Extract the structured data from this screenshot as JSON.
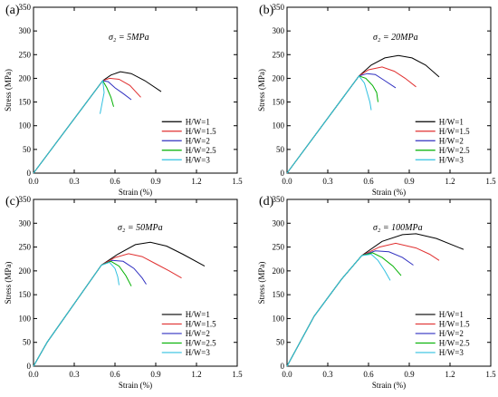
{
  "figure": {
    "panels": [
      {
        "panel_label": "(a)",
        "sigma_label": "σ₂ = 5MPa"
      },
      {
        "panel_label": "(b)",
        "sigma_label": "σ₂ = 20MPa"
      },
      {
        "panel_label": "(c)",
        "sigma_label": "σ₂ = 50MPa"
      },
      {
        "panel_label": "(d)",
        "sigma_label": "σ₂ = 100MPa"
      }
    ]
  },
  "chart_data": [
    {
      "type": "line",
      "title": "(a) σ₂ = 5MPa",
      "xlabel": "Strain (%)",
      "ylabel": "Stress (MPa)",
      "xlim": [
        0,
        1.5
      ],
      "ylim": [
        0,
        350
      ],
      "xticks": [
        "0.0",
        "0.3",
        "0.6",
        "0.9",
        "1.2",
        "1.5"
      ],
      "yticks": [
        "0",
        "50",
        "100",
        "150",
        "200",
        "250",
        "300",
        "350"
      ],
      "legend_position": "right",
      "series": [
        {
          "name": "H/W=1",
          "color": "#000000",
          "points": [
            [
              0,
              0
            ],
            [
              0.51,
              195
            ],
            [
              0.57,
              207
            ],
            [
              0.64,
              214
            ],
            [
              0.72,
              210
            ],
            [
              0.82,
              195
            ],
            [
              0.94,
              172
            ]
          ]
        },
        {
          "name": "H/W=1.5",
          "color": "#e03030",
          "points": [
            [
              0,
              0
            ],
            [
              0.51,
              195
            ],
            [
              0.56,
              200
            ],
            [
              0.63,
              198
            ],
            [
              0.71,
              185
            ],
            [
              0.79,
              160
            ]
          ]
        },
        {
          "name": "H/W=2",
          "color": "#3030c0",
          "points": [
            [
              0,
              0
            ],
            [
              0.51,
              195
            ],
            [
              0.55,
              193
            ],
            [
              0.6,
              180
            ],
            [
              0.66,
              168
            ],
            [
              0.72,
              155
            ]
          ]
        },
        {
          "name": "H/W=2.5",
          "color": "#00b000",
          "points": [
            [
              0,
              0
            ],
            [
              0.51,
              195
            ],
            [
              0.54,
              180
            ],
            [
              0.57,
              160
            ],
            [
              0.59,
              140
            ]
          ]
        },
        {
          "name": "H/W=3",
          "color": "#30c0e0",
          "points": [
            [
              0,
              0
            ],
            [
              0.51,
              195
            ],
            [
              0.52,
              170
            ],
            [
              0.5,
              140
            ],
            [
              0.49,
              125
            ]
          ]
        }
      ]
    },
    {
      "type": "line",
      "title": "(b) σ₂ = 20MPa",
      "xlabel": "Strain (%)",
      "ylabel": "Stress (MPa)",
      "xlim": [
        0,
        1.5
      ],
      "ylim": [
        0,
        350
      ],
      "xticks": [
        "0.0",
        "0.3",
        "0.6",
        "0.9",
        "1.2",
        "1.5"
      ],
      "yticks": [
        "0",
        "50",
        "100",
        "150",
        "200",
        "250",
        "300",
        "350"
      ],
      "legend_position": "right",
      "series": [
        {
          "name": "H/W=1",
          "color": "#000000",
          "points": [
            [
              0,
              0
            ],
            [
              0.53,
              205
            ],
            [
              0.62,
              228
            ],
            [
              0.72,
              243
            ],
            [
              0.82,
              248
            ],
            [
              0.92,
              243
            ],
            [
              1.02,
              228
            ],
            [
              1.12,
              203
            ]
          ]
        },
        {
          "name": "H/W=1.5",
          "color": "#e03030",
          "points": [
            [
              0,
              0
            ],
            [
              0.53,
              205
            ],
            [
              0.6,
              218
            ],
            [
              0.7,
              224
            ],
            [
              0.79,
              215
            ],
            [
              0.87,
              200
            ],
            [
              0.95,
              182
            ]
          ]
        },
        {
          "name": "H/W=2",
          "color": "#3030c0",
          "points": [
            [
              0,
              0
            ],
            [
              0.53,
              205
            ],
            [
              0.59,
              210
            ],
            [
              0.65,
              208
            ],
            [
              0.72,
              195
            ],
            [
              0.8,
              180
            ]
          ]
        },
        {
          "name": "H/W=2.5",
          "color": "#00b000",
          "points": [
            [
              0,
              0
            ],
            [
              0.53,
              205
            ],
            [
              0.58,
              200
            ],
            [
              0.63,
              185
            ],
            [
              0.66,
              170
            ],
            [
              0.67,
              150
            ]
          ]
        },
        {
          "name": "H/W=3",
          "color": "#30c0e0",
          "points": [
            [
              0,
              0
            ],
            [
              0.53,
              205
            ],
            [
              0.57,
              190
            ],
            [
              0.59,
              170
            ],
            [
              0.61,
              150
            ],
            [
              0.62,
              133
            ]
          ]
        }
      ]
    },
    {
      "type": "line",
      "title": "(c) σ₂ = 50MPa",
      "xlabel": "Strain (%)",
      "ylabel": "Stress (MPa)",
      "xlim": [
        0,
        1.5
      ],
      "ylim": [
        0,
        350
      ],
      "xticks": [
        "0.0",
        "0.3",
        "0.6",
        "0.9",
        "1.2",
        "1.5"
      ],
      "yticks": [
        "0",
        "50",
        "100",
        "150",
        "200",
        "250",
        "300",
        "350"
      ],
      "legend_position": "right",
      "series": [
        {
          "name": "H/W=1",
          "color": "#000000",
          "points": [
            [
              0,
              0
            ],
            [
              0.1,
              50
            ],
            [
              0.5,
              212
            ],
            [
              0.62,
              235
            ],
            [
              0.75,
              255
            ],
            [
              0.86,
              260
            ],
            [
              0.98,
              252
            ],
            [
              1.1,
              235
            ],
            [
              1.26,
              210
            ]
          ]
        },
        {
          "name": "H/W=1.5",
          "color": "#e03030",
          "points": [
            [
              0,
              0
            ],
            [
              0.1,
              50
            ],
            [
              0.5,
              212
            ],
            [
              0.6,
              228
            ],
            [
              0.7,
              236
            ],
            [
              0.8,
              230
            ],
            [
              0.9,
              215
            ],
            [
              1.0,
              200
            ],
            [
              1.09,
              185
            ]
          ]
        },
        {
          "name": "H/W=2",
          "color": "#3030c0",
          "points": [
            [
              0,
              0
            ],
            [
              0.1,
              50
            ],
            [
              0.5,
              212
            ],
            [
              0.58,
              222
            ],
            [
              0.66,
              220
            ],
            [
              0.74,
              205
            ],
            [
              0.8,
              185
            ],
            [
              0.83,
              172
            ]
          ]
        },
        {
          "name": "H/W=2.5",
          "color": "#00b000",
          "points": [
            [
              0,
              0
            ],
            [
              0.1,
              50
            ],
            [
              0.5,
              212
            ],
            [
              0.57,
              220
            ],
            [
              0.63,
              210
            ],
            [
              0.68,
              190
            ],
            [
              0.72,
              168
            ]
          ]
        },
        {
          "name": "H/W=3",
          "color": "#30c0e0",
          "points": [
            [
              0,
              0
            ],
            [
              0.1,
              50
            ],
            [
              0.5,
              212
            ],
            [
              0.56,
              218
            ],
            [
              0.6,
              205
            ],
            [
              0.62,
              188
            ],
            [
              0.63,
              170
            ]
          ]
        }
      ]
    },
    {
      "type": "line",
      "title": "(d) σ₂ = 100MPa",
      "xlabel": "Strain (%)",
      "ylabel": "Stress (MPa)",
      "xlim": [
        0,
        1.5
      ],
      "ylim": [
        0,
        350
      ],
      "xticks": [
        "0.0",
        "0.3",
        "0.6",
        "0.9",
        "1.2",
        "1.5"
      ],
      "yticks": [
        "0",
        "50",
        "100",
        "150",
        "200",
        "250",
        "300",
        "350"
      ],
      "legend_position": "right",
      "series": [
        {
          "name": "H/W=1",
          "color": "#000000",
          "points": [
            [
              0,
              0
            ],
            [
              0.2,
              105
            ],
            [
              0.4,
              182
            ],
            [
              0.55,
              232
            ],
            [
              0.7,
              262
            ],
            [
              0.85,
              276
            ],
            [
              0.95,
              278
            ],
            [
              1.1,
              268
            ],
            [
              1.3,
              245
            ]
          ]
        },
        {
          "name": "H/W=1.5",
          "color": "#e03030",
          "points": [
            [
              0,
              0
            ],
            [
              0.2,
              105
            ],
            [
              0.4,
              182
            ],
            [
              0.55,
              232
            ],
            [
              0.68,
              250
            ],
            [
              0.8,
              258
            ],
            [
              0.95,
              248
            ],
            [
              1.05,
              235
            ],
            [
              1.12,
              222
            ]
          ]
        },
        {
          "name": "H/W=2",
          "color": "#3030c0",
          "points": [
            [
              0,
              0
            ],
            [
              0.2,
              105
            ],
            [
              0.4,
              182
            ],
            [
              0.55,
              232
            ],
            [
              0.65,
              242
            ],
            [
              0.75,
              240
            ],
            [
              0.85,
              228
            ],
            [
              0.93,
              212
            ]
          ]
        },
        {
          "name": "H/W=2.5",
          "color": "#00b000",
          "points": [
            [
              0,
              0
            ],
            [
              0.2,
              105
            ],
            [
              0.4,
              182
            ],
            [
              0.55,
              232
            ],
            [
              0.63,
              238
            ],
            [
              0.7,
              228
            ],
            [
              0.78,
              210
            ],
            [
              0.84,
              190
            ]
          ]
        },
        {
          "name": "H/W=3",
          "color": "#30c0e0",
          "points": [
            [
              0,
              0
            ],
            [
              0.2,
              105
            ],
            [
              0.4,
              182
            ],
            [
              0.55,
              232
            ],
            [
              0.62,
              235
            ],
            [
              0.67,
              222
            ],
            [
              0.72,
              200
            ],
            [
              0.76,
              180
            ]
          ]
        }
      ]
    }
  ]
}
